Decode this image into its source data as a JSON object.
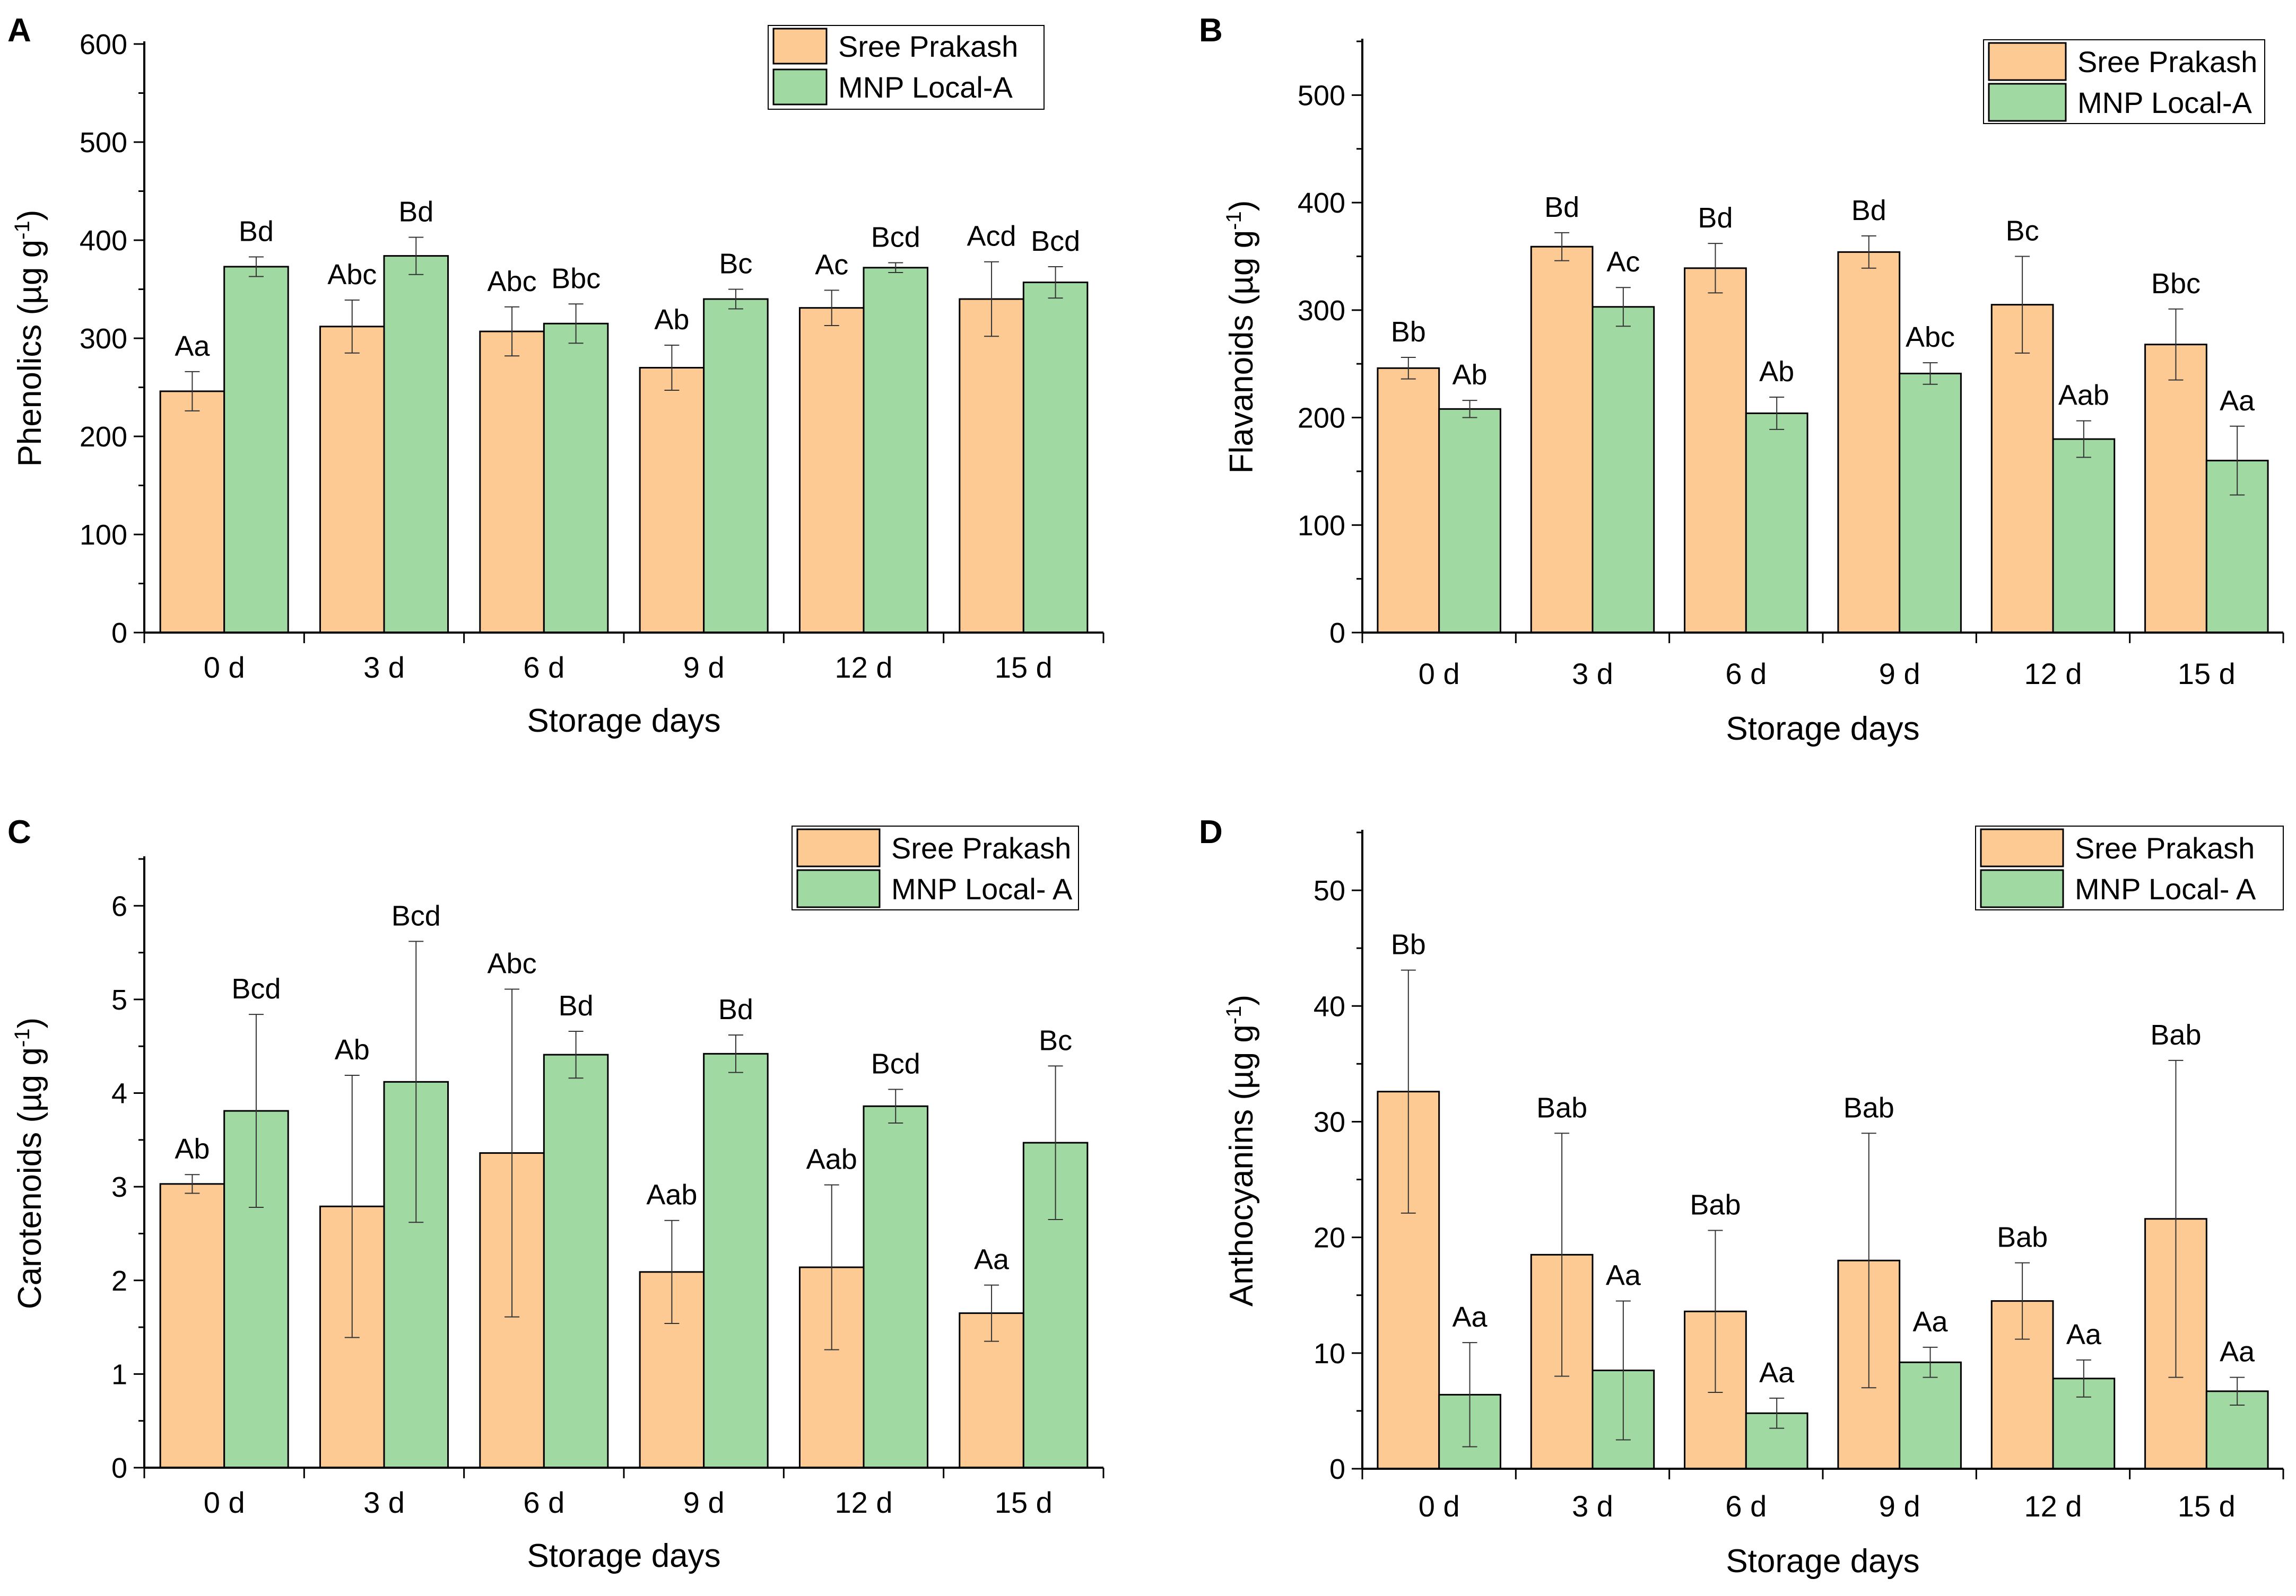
{
  "figure": {
    "legend_colors": {
      "sree_prakash": "#FDCA94",
      "mnp_local": "#A0D9A2"
    },
    "axis_color": "#000000"
  },
  "chart_data": [
    {
      "panel": "A",
      "type": "bar",
      "title": "",
      "xlabel": "Storage days",
      "ylabel_main": "Phenolics (µg g",
      "ylabel_sup": "-1",
      "ylabel_end": ")",
      "categories": [
        "0 d",
        "3 d",
        "6 d",
        "9 d",
        "12 d",
        "15 d"
      ],
      "ylim": [
        0,
        600
      ],
      "yticks": [
        0,
        100,
        200,
        300,
        400,
        500,
        600
      ],
      "legend_position": "top-right",
      "series": [
        {
          "name": "Sree Prakash",
          "color": "#FDCA94",
          "values": [
            246,
            312,
            307,
            270,
            331,
            340
          ],
          "errors": [
            20,
            27,
            25,
            23,
            18,
            38
          ],
          "labels": [
            "Aa",
            "Abc",
            "Abc",
            "Ab",
            "Ac",
            "Acd"
          ]
        },
        {
          "name": "MNP Local-A",
          "color": "#A0D9A2",
          "values": [
            373,
            384,
            315,
            340,
            372,
            357
          ],
          "errors": [
            10,
            19,
            20,
            10,
            5,
            16
          ],
          "labels": [
            "Bd",
            "Bd",
            "Bbc",
            "Bc",
            "Bcd",
            "Bcd"
          ]
        }
      ]
    },
    {
      "panel": "B",
      "type": "bar",
      "title": "",
      "xlabel": "Storage days",
      "ylabel_main": "Flavanoids (µg g",
      "ylabel_sup": "-1",
      "ylabel_end": ")",
      "categories": [
        "0 d",
        "3 d",
        "6 d",
        "9 d",
        "12 d",
        "15 d"
      ],
      "ylim": [
        0,
        550
      ],
      "yticks": [
        0,
        100,
        200,
        300,
        400,
        500
      ],
      "legend_position": "top-right",
      "series": [
        {
          "name": "Sree Prakash",
          "color": "#FDCA94",
          "values": [
            246,
            359,
            339,
            354,
            305,
            268
          ],
          "errors": [
            10,
            13,
            23,
            15,
            45,
            33
          ],
          "labels": [
            "Bb",
            "Bd",
            "Bd",
            "Bd",
            "Bc",
            "Bbc"
          ]
        },
        {
          "name": "MNP Local-A",
          "color": "#A0D9A2",
          "values": [
            208,
            303,
            204,
            241,
            180,
            160
          ],
          "errors": [
            8,
            18,
            15,
            10,
            17,
            32
          ],
          "labels": [
            "Ab",
            "Ac",
            "Ab",
            "Abc",
            "Aab",
            "Aa"
          ]
        }
      ]
    },
    {
      "panel": "C",
      "type": "bar",
      "title": "",
      "xlabel": "Storage days",
      "ylabel_main": "Carotenoids (µg g",
      "ylabel_sup": "-1",
      "ylabel_end": ")",
      "categories": [
        "0 d",
        "3 d",
        "6 d",
        "9 d",
        "12 d",
        "15 d"
      ],
      "ylim": [
        0,
        6.5
      ],
      "yticks": [
        0,
        1,
        2,
        3,
        4,
        5,
        6
      ],
      "legend_position": "top-right",
      "series": [
        {
          "name": "Sree Prakash",
          "color": "#FDCA94",
          "values": [
            3.03,
            2.79,
            3.36,
            2.09,
            2.14,
            1.65
          ],
          "errors": [
            0.1,
            1.4,
            1.75,
            0.55,
            0.88,
            0.3
          ],
          "labels": [
            "Ab",
            "Ab",
            "Abc",
            "Aab",
            "Aab",
            "Aa"
          ]
        },
        {
          "name": "MNP Local- A",
          "color": "#A0D9A2",
          "values": [
            3.81,
            4.12,
            4.41,
            4.42,
            3.86,
            3.47
          ],
          "errors": [
            1.03,
            1.5,
            0.25,
            0.2,
            0.18,
            0.82
          ],
          "labels": [
            "Bcd",
            "Bcd",
            "Bd",
            "Bd",
            "Bcd",
            "Bc"
          ]
        }
      ]
    },
    {
      "panel": "D",
      "type": "bar",
      "title": "",
      "xlabel": "Storage days",
      "ylabel_main": "Anthocyanins (µg g",
      "ylabel_sup": "-1",
      "ylabel_end": ")",
      "categories": [
        "0 d",
        "3 d",
        "6 d",
        "9 d",
        "12 d",
        "15 d"
      ],
      "ylim": [
        0,
        55
      ],
      "yticks": [
        0,
        10,
        20,
        30,
        40,
        50
      ],
      "legend_position": "top-right",
      "series": [
        {
          "name": "Sree Prakash",
          "color": "#FDCA94",
          "values": [
            32.6,
            18.5,
            13.6,
            18.0,
            14.5,
            21.6
          ],
          "errors": [
            10.5,
            10.5,
            7.0,
            11.0,
            3.3,
            13.7
          ],
          "labels": [
            "Bb",
            "Bab",
            "Bab",
            "Bab",
            "Bab",
            "Bab"
          ]
        },
        {
          "name": "MNP Local- A",
          "color": "#A0D9A2",
          "values": [
            6.4,
            8.5,
            4.8,
            9.2,
            7.8,
            6.7
          ],
          "errors": [
            4.5,
            6.0,
            1.3,
            1.3,
            1.6,
            1.2
          ],
          "labels": [
            "Aa",
            "Aa",
            "Aa",
            "Aa",
            "Aa",
            "Aa"
          ]
        }
      ]
    }
  ]
}
